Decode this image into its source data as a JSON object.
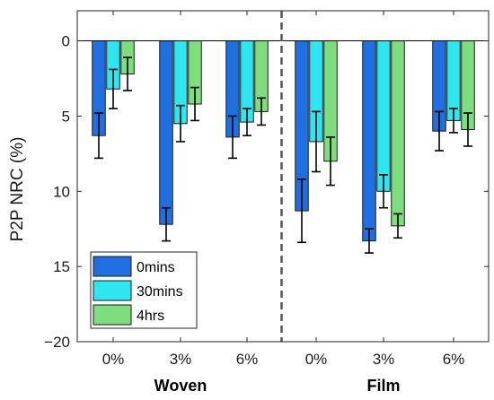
{
  "chart_data": {
    "type": "bar",
    "ylabel": "P2P NRC (%)",
    "ylim": [
      -20,
      2
    ],
    "yticks": [
      0,
      -5,
      -10,
      -15,
      -20
    ],
    "ytick_labels": [
      "0",
      "5",
      "10",
      "15",
      "−20"
    ],
    "grid": false,
    "groups": [
      {
        "name": "Woven",
        "categories": [
          "0%",
          "3%",
          "6%"
        ]
      },
      {
        "name": "Film",
        "categories": [
          "0%",
          "3%",
          "6%"
        ]
      }
    ],
    "categories": [
      "0%",
      "3%",
      "6%",
      "0%",
      "3%",
      "6%"
    ],
    "series": [
      {
        "name": "0mins",
        "color": "#1f6fe0",
        "values": [
          -6.3,
          -12.2,
          -6.4,
          -11.3,
          -13.3,
          -6.0
        ],
        "errors": [
          1.5,
          1.1,
          1.4,
          2.1,
          0.8,
          1.3
        ]
      },
      {
        "name": "30mins",
        "color": "#2ee6f0",
        "values": [
          -3.2,
          -5.5,
          -5.4,
          -6.7,
          -10.0,
          -5.3
        ],
        "errors": [
          1.3,
          1.2,
          0.9,
          2.0,
          1.1,
          0.8
        ]
      },
      {
        "name": "4hrs",
        "color": "#7ede7e",
        "values": [
          -2.2,
          -4.2,
          -4.7,
          -8.0,
          -12.3,
          -5.9
        ],
        "errors": [
          1.1,
          1.1,
          0.9,
          1.6,
          0.8,
          1.1
        ]
      }
    ],
    "divider_after_category": 2,
    "legend": "bottom-left"
  }
}
